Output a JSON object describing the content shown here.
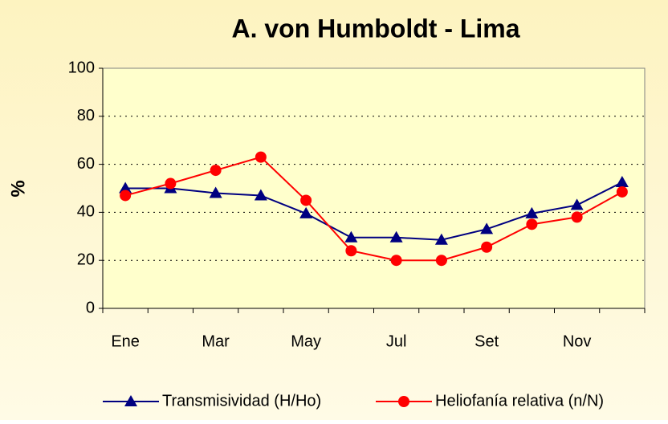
{
  "chart_data": {
    "type": "line",
    "title": "A. von Humboldt - Lima",
    "y_label": "%",
    "categories": [
      "Ene",
      null,
      "Mar",
      null,
      "May",
      null,
      "Jul",
      null,
      "Set",
      null,
      "Nov",
      null
    ],
    "series": [
      {
        "name": "Transmisividad (H/Ho)",
        "color": "#000080",
        "marker": "triangle",
        "values": [
          50,
          50,
          48,
          47,
          39.5,
          29.5,
          29.5,
          28.5,
          33,
          39.5,
          43,
          52.5
        ]
      },
      {
        "name": "Heliofanía relativa (n/N)",
        "color": "#ff0000",
        "marker": "circle",
        "values": [
          47,
          52,
          57.5,
          63,
          45,
          24,
          20,
          20,
          25.5,
          35,
          38,
          48.5
        ]
      }
    ],
    "ylim": [
      0,
      100
    ],
    "yticks": [
      0,
      20,
      40,
      60,
      80,
      100
    ],
    "grid": true,
    "legend": "bottom"
  }
}
